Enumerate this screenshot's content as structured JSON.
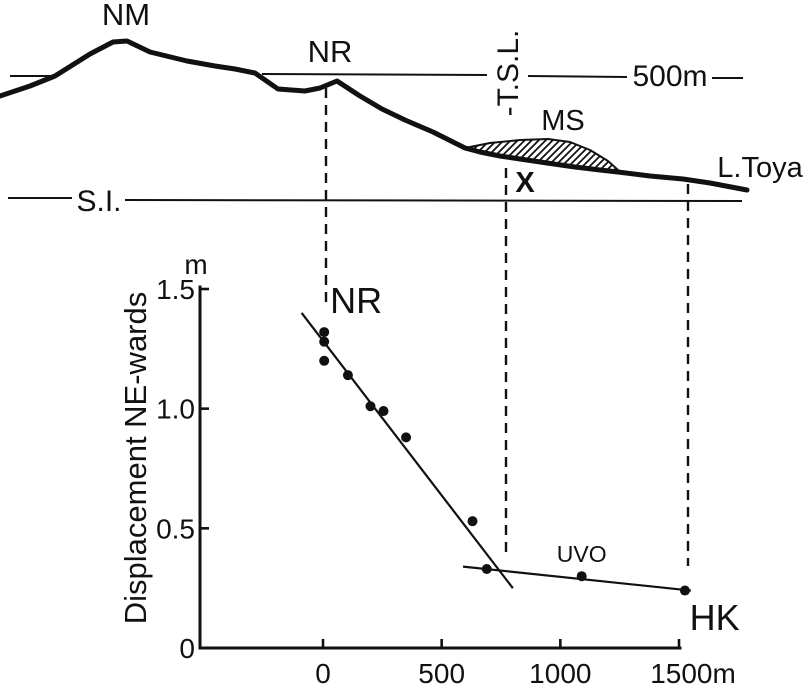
{
  "profile": {
    "peak_left_label": "NM",
    "peak_right_label": "NR",
    "elevation_label": "500m",
    "tsl_label": "-T.S.L.",
    "deposit_label": "MS",
    "site_marker_label": "X",
    "lake_label": "L.Toya",
    "sea_level_label": "S.I."
  },
  "chart_data": {
    "type": "scatter",
    "title": "",
    "xlabel": "",
    "ylabel": "Displacement NE-wards",
    "y_unit_label": "m",
    "xlim": [
      -520,
      1560
    ],
    "ylim": [
      0,
      1.5
    ],
    "grid": false,
    "legend": "none",
    "x_ticks": [
      {
        "value": 0,
        "label": "0"
      },
      {
        "value": 500,
        "label": "500"
      },
      {
        "value": 1000,
        "label": "1000"
      },
      {
        "value": 1500,
        "label": "1500m"
      }
    ],
    "y_ticks": [
      {
        "value": 0,
        "label": "0"
      },
      {
        "value": 0.5,
        "label": "0.5"
      },
      {
        "value": 1.0,
        "label": "1.0"
      },
      {
        "value": 1.5,
        "label": "1.5"
      }
    ],
    "points": [
      {
        "x": 5,
        "y": 1.32
      },
      {
        "x": 5,
        "y": 1.28
      },
      {
        "x": 5,
        "y": 1.2
      },
      {
        "x": 105,
        "y": 1.14
      },
      {
        "x": 200,
        "y": 1.01
      },
      {
        "x": 255,
        "y": 0.99
      },
      {
        "x": 350,
        "y": 0.88
      },
      {
        "x": 630,
        "y": 0.53
      },
      {
        "x": 690,
        "y": 0.33
      },
      {
        "x": 1090,
        "y": 0.3,
        "label": "UVO"
      },
      {
        "x": 1525,
        "y": 0.24,
        "label": "HK"
      }
    ],
    "trend_lines": [
      {
        "name": "NR-trend",
        "x1": -90,
        "y1": 1.4,
        "x2": 800,
        "y2": 0.25
      },
      {
        "name": "HK-trend",
        "x1": 590,
        "y1": 0.34,
        "x2": 1550,
        "y2": 0.24
      }
    ],
    "annotations": [
      {
        "text": "NR",
        "x": 30,
        "y": 1.4
      },
      {
        "text": "UVO",
        "x": 1090,
        "y": 0.36
      },
      {
        "text": "HK",
        "x": 1650,
        "y": 0.075
      }
    ],
    "colors": {
      "ink": "#111111",
      "background": "#ffffff"
    }
  }
}
